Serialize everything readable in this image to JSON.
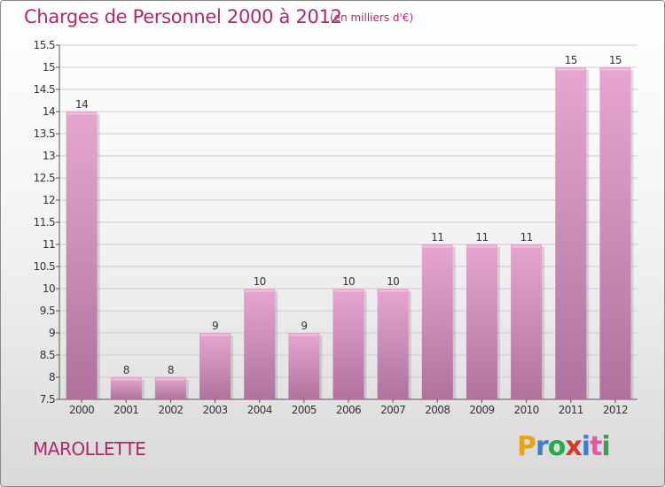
{
  "header": {
    "title": "Charges de Personnel 2000 à 2012",
    "subtitle": "(en milliers d'€)"
  },
  "footer": {
    "commune": "MAROLLETTE",
    "brand": "Proxiti",
    "brand_colors": [
      "#e8a219",
      "#3a7fd0",
      "#2aa84a",
      "#d63a2a",
      "#3a7fd0",
      "#e05aa0",
      "#2aa84a"
    ]
  },
  "colors": {
    "accent": "#b5256c",
    "bar_top": "#e6a6cf",
    "bar_bottom": "#b0729d",
    "grid": "#cccccc"
  },
  "chart_data": {
    "type": "bar",
    "title": "Charges de Personnel 2000 à 2012",
    "subtitle": "(en milliers d'€)",
    "xlabel": "",
    "ylabel": "",
    "categories": [
      "2000",
      "2001",
      "2002",
      "2003",
      "2004",
      "2005",
      "2006",
      "2007",
      "2008",
      "2009",
      "2010",
      "2011",
      "2012"
    ],
    "values": [
      14,
      8,
      8,
      9,
      10,
      9,
      10,
      10,
      11,
      11,
      11,
      15,
      15
    ],
    "value_labels": [
      "14",
      "8",
      "8",
      "9",
      "10",
      "9",
      "10",
      "10",
      "11",
      "11",
      "11",
      "15",
      "15"
    ],
    "ylim": [
      7.5,
      15.5
    ],
    "yticks": [
      7.5,
      8,
      8.5,
      9,
      9.5,
      10,
      10.5,
      11,
      11.5,
      12,
      12.5,
      13,
      13.5,
      14,
      14.5,
      15,
      15.5
    ],
    "ytick_labels": [
      "7.5",
      "8",
      "8.5",
      "9",
      "9.5",
      "10",
      "10.5",
      "11",
      "11.5",
      "12",
      "12.5",
      "13",
      "13.5",
      "14",
      "14.5",
      "15",
      "15.5"
    ],
    "grid": true,
    "legend": "none"
  }
}
